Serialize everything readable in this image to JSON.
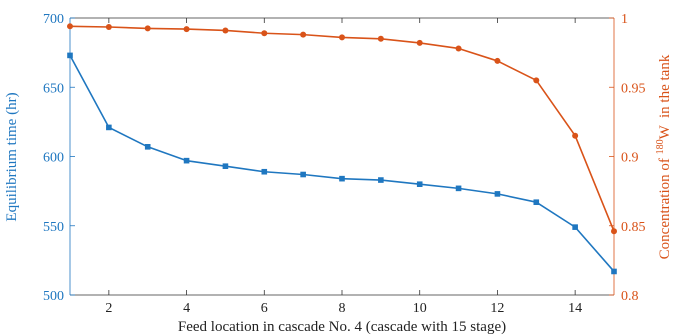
{
  "chart_data": {
    "type": "line",
    "title": "",
    "xlabel": "Feed location in cascade No. 4 (cascade with 15 stage)",
    "ylabel_left": "Equilibrium time (hr)",
    "ylabel_right": {
      "prefix": "Concentration of ",
      "superscript": "180",
      "element": "W",
      "suffix": "  in the tank"
    },
    "xlim": [
      1,
      15
    ],
    "ylim_left": [
      500,
      700
    ],
    "ylim_right": [
      0.8,
      1.0
    ],
    "x_ticks": [
      2,
      4,
      6,
      8,
      10,
      12,
      14
    ],
    "x_tick_labels": [
      "2",
      "4",
      "6",
      "8",
      "10",
      "12",
      "14"
    ],
    "left_ticks": [
      500,
      550,
      600,
      650,
      700
    ],
    "left_tick_labels": [
      "500",
      "550",
      "600",
      "650",
      "700"
    ],
    "right_ticks": [
      0.8,
      0.85,
      0.9,
      0.95,
      1.0
    ],
    "right_tick_labels": [
      "0.8",
      "0.85",
      "0.9",
      "0.95",
      "1"
    ],
    "grid": false,
    "legend": "none",
    "x": [
      1,
      2,
      3,
      4,
      5,
      6,
      7,
      8,
      9,
      10,
      11,
      12,
      13,
      14,
      15
    ],
    "series": [
      {
        "axis": "left",
        "color": "#1f77c0",
        "marker": "square",
        "values": [
          673,
          621,
          607,
          597,
          593,
          589,
          587,
          584,
          583,
          580,
          577,
          573,
          567,
          549,
          517
        ]
      },
      {
        "axis": "right",
        "color": "#d95319",
        "marker": "circle",
        "values": [
          0.994,
          0.9935,
          0.9925,
          0.992,
          0.991,
          0.989,
          0.988,
          0.986,
          0.985,
          0.982,
          0.978,
          0.969,
          0.955,
          0.915,
          0.846
        ]
      }
    ]
  }
}
